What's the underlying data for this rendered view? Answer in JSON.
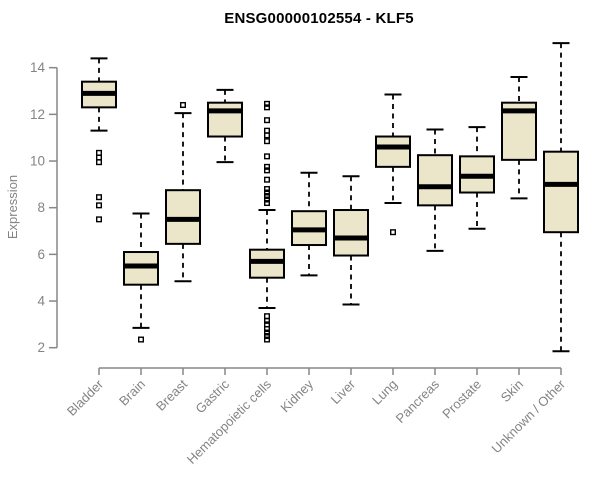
{
  "chart_data": {
    "type": "boxplot",
    "title": "ENSG00000102554 - KLF5",
    "ylabel": "Expression",
    "xlabel": "",
    "ylim": [
      1.6,
      15.3
    ],
    "yticks": [
      2,
      4,
      6,
      8,
      10,
      12,
      14
    ],
    "grid": false,
    "legend": "none",
    "categories": [
      "Bladder",
      "Brain",
      "Breast",
      "Gastric",
      "Hematopoietic cells",
      "Kidney",
      "Liver",
      "Lung",
      "Pancreas",
      "Prostate",
      "Skin",
      "Unknown / Other"
    ],
    "boxes": [
      {
        "category": "Bladder",
        "low": 11.3,
        "q1": 12.3,
        "median": 12.9,
        "q3": 13.4,
        "high": 14.4,
        "outliers": [
          10.35,
          10.15,
          9.95,
          8.45,
          8.1,
          7.5
        ]
      },
      {
        "category": "Brain",
        "low": 2.85,
        "q1": 4.7,
        "median": 5.5,
        "q3": 6.1,
        "high": 7.75,
        "outliers": [
          2.35
        ]
      },
      {
        "category": "Breast",
        "low": 4.85,
        "q1": 6.45,
        "median": 7.5,
        "q3": 8.75,
        "high": 12.05,
        "outliers": [
          12.4
        ]
      },
      {
        "category": "Gastric",
        "low": 9.95,
        "q1": 11.05,
        "median": 12.15,
        "q3": 12.5,
        "high": 13.05,
        "outliers": []
      },
      {
        "category": "Hematopoietic cells",
        "low": 3.7,
        "q1": 5.0,
        "median": 5.7,
        "q3": 6.2,
        "high": 7.9,
        "outliers": [
          12.45,
          12.3,
          11.75,
          11.3,
          11.1,
          10.85,
          10.2,
          9.75,
          9.6,
          9.2,
          8.8,
          8.65,
          8.5,
          8.35,
          8.2,
          3.35,
          3.15,
          3.0,
          2.8,
          2.65,
          2.5,
          2.35
        ]
      },
      {
        "category": "Kidney",
        "low": 5.1,
        "q1": 6.4,
        "median": 7.05,
        "q3": 7.85,
        "high": 9.5,
        "outliers": []
      },
      {
        "category": "Liver",
        "low": 3.85,
        "q1": 5.95,
        "median": 6.7,
        "q3": 7.9,
        "high": 9.35,
        "outliers": []
      },
      {
        "category": "Lung",
        "low": 8.2,
        "q1": 9.75,
        "median": 10.6,
        "q3": 11.05,
        "high": 12.85,
        "outliers": [
          6.95
        ]
      },
      {
        "category": "Pancreas",
        "low": 6.15,
        "q1": 8.1,
        "median": 8.9,
        "q3": 10.25,
        "high": 11.35,
        "outliers": []
      },
      {
        "category": "Prostate",
        "low": 7.1,
        "q1": 8.65,
        "median": 9.35,
        "q3": 10.2,
        "high": 11.45,
        "outliers": []
      },
      {
        "category": "Skin",
        "low": 8.4,
        "q1": 10.05,
        "median": 12.15,
        "q3": 12.5,
        "high": 13.6,
        "outliers": []
      },
      {
        "category": "Unknown / Other",
        "low": 1.85,
        "q1": 6.95,
        "median": 9.0,
        "q3": 10.4,
        "high": 15.05,
        "outliers": []
      }
    ],
    "colors": {
      "background": "#ffffff",
      "box_fill": "#EBE5C9",
      "box_border": "#000000",
      "median": "#000000",
      "whisker": "#000000",
      "axis": "#878787",
      "tick_label": "#848484",
      "title": "#000000"
    }
  }
}
